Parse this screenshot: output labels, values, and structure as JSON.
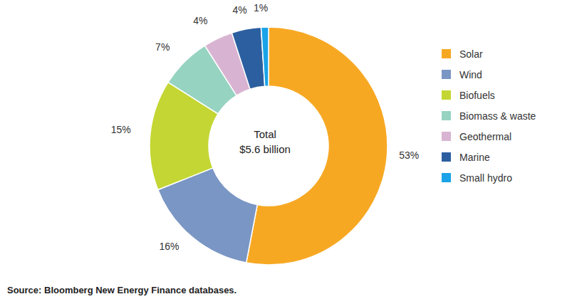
{
  "chart_data": {
    "type": "pie",
    "categories": [
      "Solar",
      "Wind",
      "Biofuels",
      "Biomass & waste",
      "Geothermal",
      "Marine",
      "Small hydro"
    ],
    "values": [
      53,
      16,
      15,
      7,
      4,
      4,
      1
    ],
    "value_labels": [
      "53%",
      "16%",
      "15%",
      "7%",
      "4%",
      "4%",
      "1%"
    ],
    "colors": [
      "#f7a823",
      "#7a96c4",
      "#c3d633",
      "#96d3c0",
      "#d8b4d2",
      "#2c5fa0",
      "#1aa3e8"
    ],
    "data_labels": true,
    "legend": "right",
    "center_label": [
      "Total",
      "$5.6 billion"
    ],
    "source": "Source: Bloomberg New Energy Finance databases."
  }
}
